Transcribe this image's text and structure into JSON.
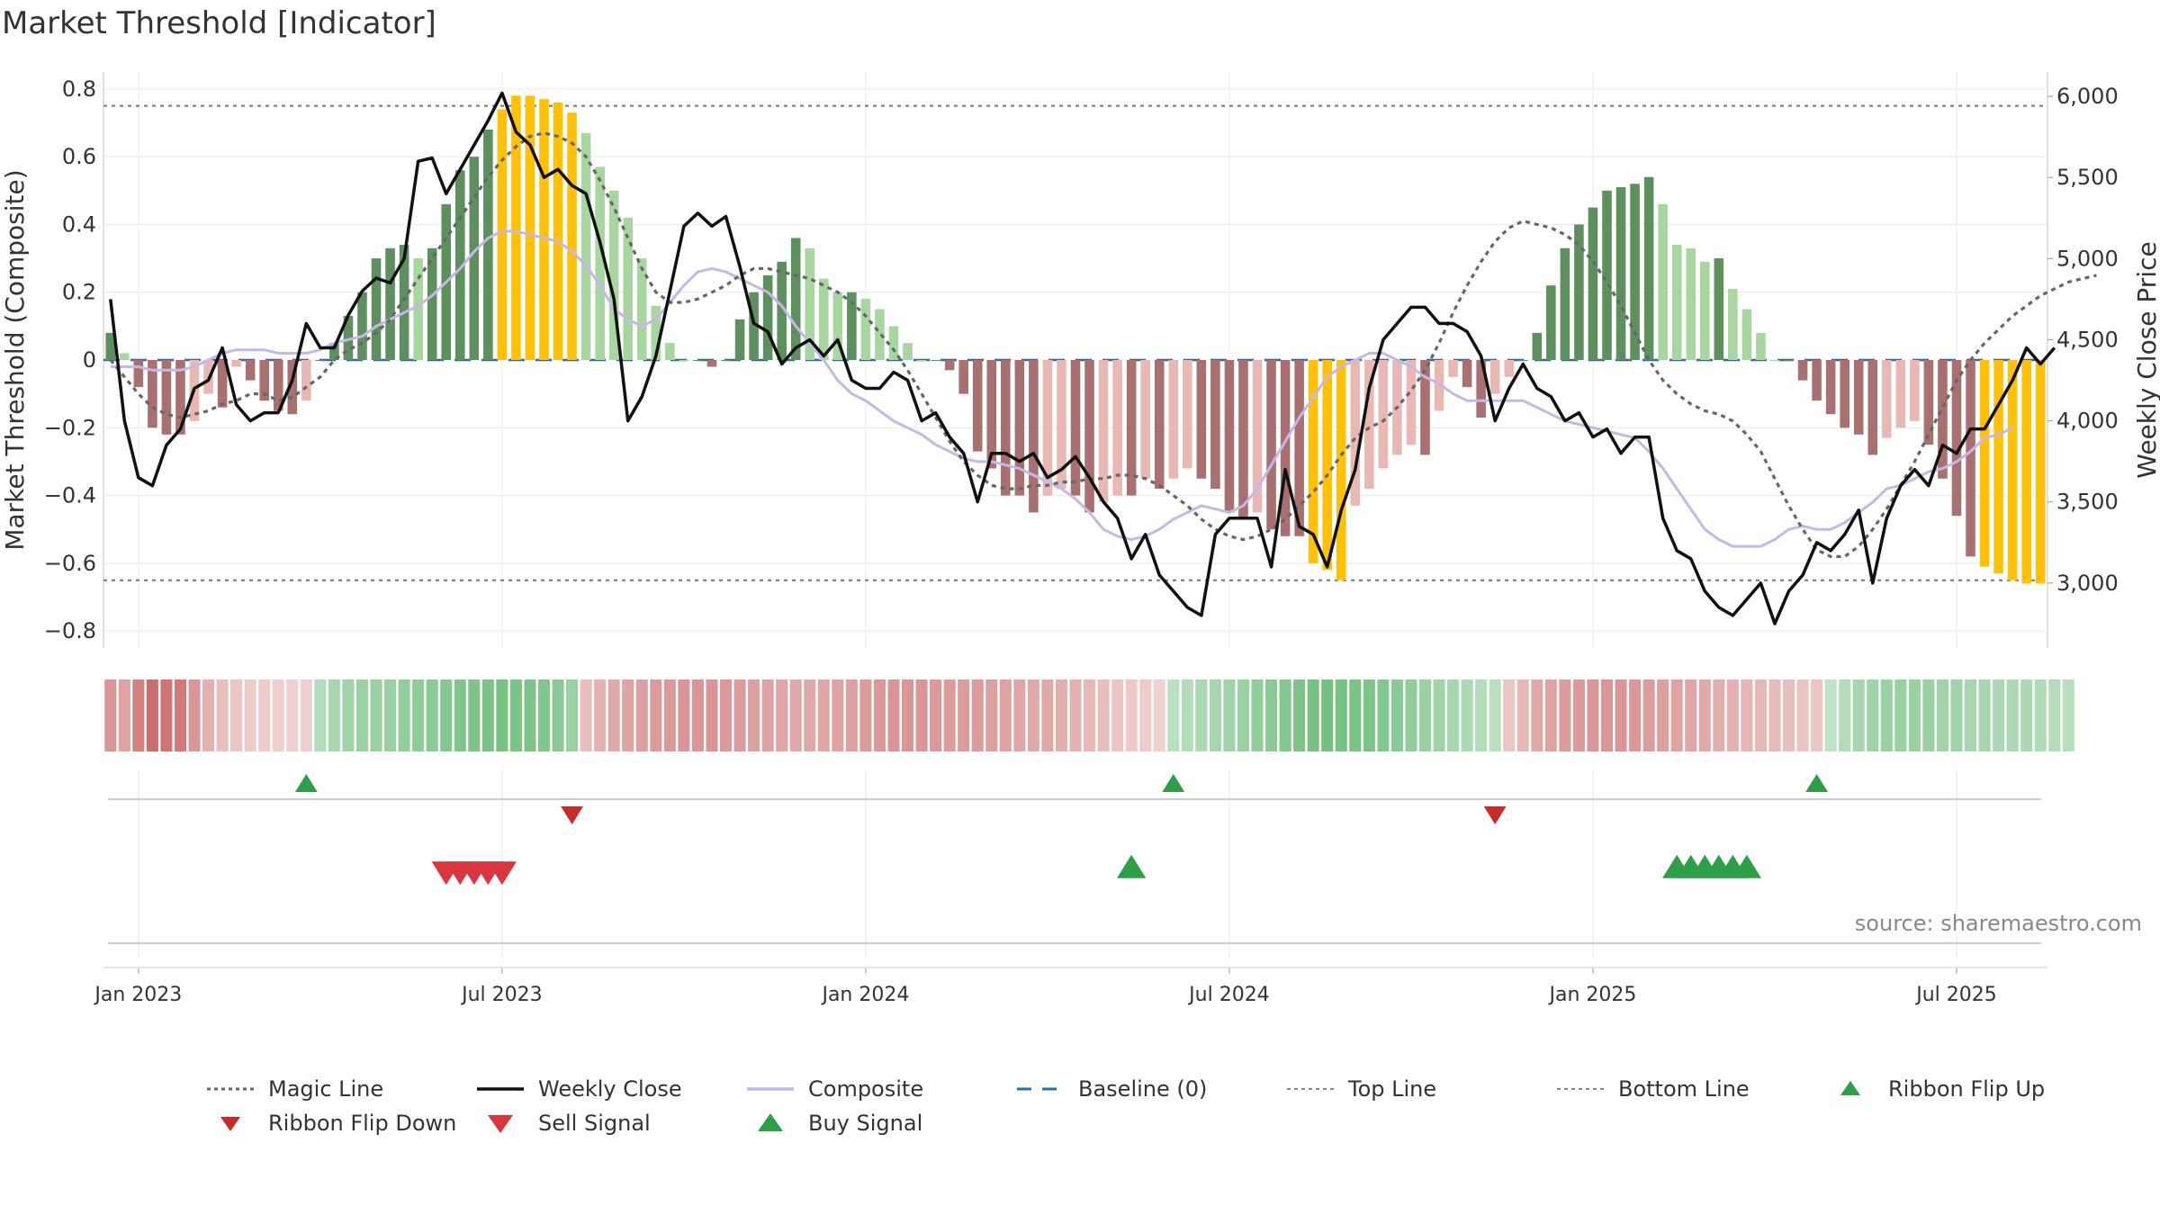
{
  "title": "Market Threshold [Indicator]",
  "source": "source: sharemaestro.com",
  "chart_data": {
    "type": "bar",
    "x_ticks": [
      "Jan 2023",
      "Jul 2023",
      "Jan 2024",
      "Jul 2024",
      "Jan 2025",
      "Jul 2025"
    ],
    "ylabel_left": "Market Threshold (Composite)",
    "ylabel_right": "Weekly Close Price",
    "y_left_ticks": [
      "0.8",
      "0.6",
      "0.4",
      "0.2",
      "0",
      "−0.2",
      "−0.4",
      "−0.6",
      "−0.8"
    ],
    "y_right_ticks": [
      "6,000",
      "5,500",
      "5,000",
      "4,500",
      "4,000",
      "3,500",
      "3,000"
    ],
    "ylim_left": [
      -0.85,
      0.85
    ],
    "ylim_right": [
      2600,
      6150
    ],
    "top_line": 0.75,
    "bottom_line": -0.65,
    "colors": {
      "strong_up": "#5e8f5e",
      "weak_up": "#a8d5a0",
      "strong_down": "#a87070",
      "weak_down": "#e8b9b4",
      "extreme": "#ffc107",
      "close": "#111111",
      "composite": "#c5b8e6",
      "magic": "#666666",
      "buy": "#2e9e47",
      "sell": "#d9363e",
      "flip_up": "#2e9e47",
      "flip_down": "#c92a2a"
    },
    "weeks": 139,
    "histogram": [
      0.08,
      0.02,
      -0.08,
      -0.2,
      -0.22,
      -0.22,
      -0.18,
      -0.1,
      -0.14,
      -0.02,
      -0.06,
      -0.12,
      -0.15,
      -0.16,
      -0.12,
      0.0,
      0.05,
      0.13,
      0.2,
      0.3,
      0.33,
      0.34,
      0.3,
      0.33,
      0.46,
      0.56,
      0.6,
      0.68,
      0.74,
      0.78,
      0.78,
      0.77,
      0.76,
      0.73,
      0.67,
      0.57,
      0.5,
      0.42,
      0.3,
      0.16,
      0.05,
      0.0,
      0.0,
      -0.02,
      0.0,
      0.12,
      0.2,
      0.25,
      0.29,
      0.36,
      0.33,
      0.24,
      0.2,
      0.2,
      0.18,
      0.15,
      0.1,
      0.05,
      0.0,
      0.0,
      -0.03,
      -0.1,
      -0.27,
      -0.32,
      -0.4,
      -0.4,
      -0.45,
      -0.4,
      -0.38,
      -0.4,
      -0.45,
      -0.42,
      -0.4,
      -0.4,
      -0.35,
      -0.38,
      -0.35,
      -0.32,
      -0.35,
      -0.38,
      -0.45,
      -0.47,
      -0.45,
      -0.5,
      -0.52,
      -0.52,
      -0.6,
      -0.62,
      -0.65,
      -0.43,
      -0.38,
      -0.32,
      -0.28,
      -0.25,
      -0.28,
      -0.15,
      -0.05,
      -0.08,
      -0.17,
      -0.1,
      -0.05,
      0.0,
      0.08,
      0.22,
      0.33,
      0.4,
      0.45,
      0.5,
      0.51,
      0.52,
      0.54,
      0.46,
      0.34,
      0.33,
      0.29,
      0.3,
      0.21,
      0.15,
      0.08,
      0.0,
      0.0,
      -0.06,
      -0.12,
      -0.16,
      -0.2,
      -0.22,
      -0.28,
      -0.23,
      -0.2,
      -0.18,
      -0.25,
      -0.35,
      -0.46,
      -0.58,
      -0.61,
      -0.63,
      -0.65,
      -0.66,
      -0.66
    ],
    "magic_line": [
      0.0,
      -0.05,
      -0.1,
      -0.14,
      -0.16,
      -0.17,
      -0.16,
      -0.15,
      -0.13,
      -0.12,
      -0.1,
      -0.1,
      -0.12,
      -0.11,
      -0.08,
      -0.05,
      0.0,
      0.03,
      0.05,
      0.08,
      0.12,
      0.18,
      0.24,
      0.3,
      0.36,
      0.42,
      0.48,
      0.54,
      0.59,
      0.63,
      0.66,
      0.67,
      0.66,
      0.64,
      0.6,
      0.53,
      0.45,
      0.36,
      0.27,
      0.2,
      0.17,
      0.17,
      0.18,
      0.2,
      0.22,
      0.25,
      0.27,
      0.27,
      0.26,
      0.25,
      0.24,
      0.22,
      0.2,
      0.17,
      0.13,
      0.08,
      0.03,
      -0.03,
      -0.1,
      -0.17,
      -0.24,
      -0.3,
      -0.34,
      -0.37,
      -0.38,
      -0.38,
      -0.37,
      -0.37,
      -0.36,
      -0.36,
      -0.35,
      -0.35,
      -0.34,
      -0.34,
      -0.35,
      -0.37,
      -0.4,
      -0.43,
      -0.47,
      -0.5,
      -0.52,
      -0.53,
      -0.52,
      -0.5,
      -0.47,
      -0.43,
      -0.39,
      -0.34,
      -0.28,
      -0.23,
      -0.2,
      -0.18,
      -0.14,
      -0.09,
      -0.03,
      0.05,
      0.14,
      0.22,
      0.29,
      0.35,
      0.39,
      0.41,
      0.4,
      0.39,
      0.37,
      0.34,
      0.29,
      0.23,
      0.16,
      0.08,
      0.0,
      -0.06,
      -0.1,
      -0.13,
      -0.15,
      -0.16,
      -0.18,
      -0.22,
      -0.27,
      -0.35,
      -0.43,
      -0.5,
      -0.56,
      -0.58,
      -0.58,
      -0.55,
      -0.5,
      -0.44,
      -0.37,
      -0.3,
      -0.22,
      -0.14,
      -0.06,
      0.0,
      0.05,
      0.09,
      0.13,
      0.16,
      0.19,
      0.21,
      0.23,
      0.24,
      0.25
    ],
    "composite": [
      -0.02,
      -0.02,
      -0.02,
      -0.03,
      -0.03,
      -0.03,
      -0.02,
      0.0,
      0.02,
      0.03,
      0.03,
      0.03,
      0.02,
      0.02,
      0.02,
      0.03,
      0.05,
      0.06,
      0.07,
      0.1,
      0.12,
      0.14,
      0.16,
      0.19,
      0.23,
      0.27,
      0.32,
      0.36,
      0.38,
      0.38,
      0.37,
      0.36,
      0.35,
      0.32,
      0.28,
      0.22,
      0.15,
      0.12,
      0.1,
      0.12,
      0.17,
      0.22,
      0.26,
      0.27,
      0.26,
      0.24,
      0.22,
      0.2,
      0.16,
      0.1,
      0.05,
      0.0,
      -0.06,
      -0.1,
      -0.12,
      -0.15,
      -0.18,
      -0.2,
      -0.22,
      -0.25,
      -0.27,
      -0.29,
      -0.3,
      -0.3,
      -0.31,
      -0.32,
      -0.34,
      -0.36,
      -0.38,
      -0.41,
      -0.45,
      -0.5,
      -0.52,
      -0.53,
      -0.52,
      -0.5,
      -0.47,
      -0.45,
      -0.43,
      -0.44,
      -0.45,
      -0.43,
      -0.38,
      -0.31,
      -0.24,
      -0.17,
      -0.11,
      -0.05,
      -0.02,
      0.0,
      0.02,
      0.02,
      0.0,
      -0.02,
      -0.05,
      -0.07,
      -0.1,
      -0.12,
      -0.12,
      -0.12,
      -0.12,
      -0.12,
      -0.14,
      -0.16,
      -0.18,
      -0.19,
      -0.2,
      -0.21,
      -0.22,
      -0.23,
      -0.27,
      -0.32,
      -0.38,
      -0.44,
      -0.5,
      -0.53,
      -0.55,
      -0.55,
      -0.55,
      -0.53,
      -0.5,
      -0.49,
      -0.5,
      -0.5,
      -0.48,
      -0.45,
      -0.42,
      -0.38,
      -0.37,
      -0.35,
      -0.33,
      -0.32,
      -0.3,
      -0.27,
      -0.23,
      -0.22,
      -0.2
    ],
    "weekly_close": [
      4750,
      4000,
      3650,
      3600,
      3850,
      3950,
      4200,
      4250,
      4450,
      4100,
      4000,
      4050,
      4050,
      4250,
      4600,
      4450,
      4450,
      4650,
      4800,
      4880,
      4850,
      5000,
      5600,
      5620,
      5400,
      5550,
      5700,
      5850,
      6020,
      5780,
      5700,
      5500,
      5550,
      5450,
      5400,
      5100,
      4750,
      4000,
      4150,
      4400,
      4800,
      5200,
      5280,
      5200,
      5260,
      4950,
      4600,
      4550,
      4350,
      4450,
      4500,
      4400,
      4500,
      4250,
      4200,
      4200,
      4300,
      4250,
      4000,
      4050,
      3900,
      3800,
      3500,
      3800,
      3800,
      3750,
      3800,
      3650,
      3700,
      3780,
      3650,
      3500,
      3400,
      3150,
      3300,
      3050,
      2950,
      2850,
      2800,
      3300,
      3400,
      3400,
      3400,
      3100,
      3700,
      3350,
      3300,
      3100,
      3450,
      3700,
      4200,
      4500,
      4600,
      4700,
      4700,
      4600,
      4600,
      4550,
      4400,
      4000,
      4200,
      4350,
      4200,
      4150,
      4000,
      4050,
      3900,
      3950,
      3800,
      3900,
      3900,
      3400,
      3200,
      3150,
      2950,
      2850,
      2800,
      2900,
      3000,
      2750,
      2950,
      3050,
      3250,
      3200,
      3300,
      3450,
      3000,
      3400,
      3600,
      3700,
      3600,
      3850,
      3800,
      3950,
      3950,
      4100,
      4250,
      4450,
      4350,
      4450
    ],
    "ribbon": [
      -0.55,
      -0.45,
      -0.7,
      -0.85,
      -0.8,
      -0.75,
      -0.55,
      -0.35,
      -0.25,
      -0.2,
      -0.15,
      -0.15,
      -0.12,
      -0.12,
      -0.12,
      0.35,
      0.45,
      0.5,
      0.55,
      0.55,
      0.55,
      0.6,
      0.62,
      0.65,
      0.7,
      0.72,
      0.75,
      0.78,
      0.8,
      0.78,
      0.75,
      0.72,
      0.65,
      0.55,
      -0.25,
      -0.35,
      -0.4,
      -0.45,
      -0.48,
      -0.5,
      -0.52,
      -0.55,
      -0.55,
      -0.55,
      -0.52,
      -0.5,
      -0.48,
      -0.45,
      -0.42,
      -0.4,
      -0.4,
      -0.42,
      -0.45,
      -0.48,
      -0.5,
      -0.52,
      -0.55,
      -0.55,
      -0.55,
      -0.52,
      -0.5,
      -0.5,
      -0.5,
      -0.48,
      -0.45,
      -0.42,
      -0.4,
      -0.4,
      -0.38,
      -0.35,
      -0.3,
      -0.25,
      -0.2,
      -0.18,
      -0.15,
      -0.12,
      0.3,
      0.35,
      0.4,
      0.45,
      0.5,
      0.55,
      0.6,
      0.65,
      0.7,
      0.75,
      0.8,
      0.82,
      0.8,
      0.78,
      0.75,
      0.7,
      0.65,
      0.6,
      0.55,
      0.5,
      0.45,
      0.4,
      0.35,
      0.3,
      -0.2,
      -0.3,
      -0.4,
      -0.45,
      -0.5,
      -0.52,
      -0.55,
      -0.55,
      -0.55,
      -0.52,
      -0.5,
      -0.48,
      -0.45,
      -0.42,
      -0.4,
      -0.38,
      -0.35,
      -0.32,
      -0.3,
      -0.28,
      -0.25,
      -0.22,
      -0.2,
      0.25,
      0.35,
      0.45,
      0.5,
      0.55,
      0.55,
      0.55,
      0.55,
      0.5,
      0.5,
      0.45,
      0.45,
      0.4,
      0.4,
      0.4,
      0.38,
      0.35,
      0.32
    ],
    "ribbon_flip_up": [
      14,
      76,
      122
    ],
    "ribbon_flip_down": [
      33,
      99
    ],
    "sell_signals": [
      24,
      25,
      26,
      27,
      28
    ],
    "buy_signals": [
      73,
      112,
      113,
      114,
      115,
      116,
      117
    ],
    "legend": [
      {
        "label": "Magic Line",
        "style": "dotted"
      },
      {
        "label": "Weekly Close",
        "style": "solid"
      },
      {
        "label": "Composite",
        "style": "lavender"
      },
      {
        "label": "Baseline (0)",
        "style": "dashed"
      },
      {
        "label": "Top Line",
        "style": "thin-dashed"
      },
      {
        "label": "Bottom Line",
        "style": "thin-dashed"
      },
      {
        "label": "Ribbon Flip Up",
        "style": "tri-up-small"
      },
      {
        "label": "Ribbon Flip Down",
        "style": "tri-down-small"
      },
      {
        "label": "Sell Signal",
        "style": "tri-down-big"
      },
      {
        "label": "Buy Signal",
        "style": "tri-up-big"
      }
    ]
  }
}
